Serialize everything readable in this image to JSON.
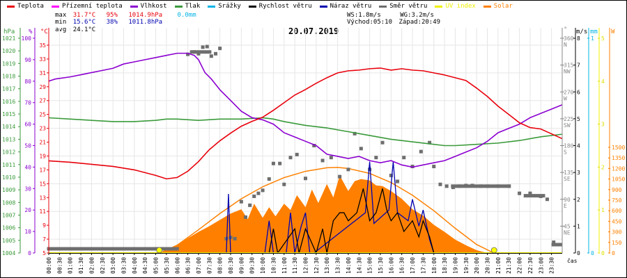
{
  "legend": [
    {
      "label": "Teplota",
      "color": "#e8000b"
    },
    {
      "label": "Přízemní teplota",
      "color": "#ff00ff"
    },
    {
      "label": "Vlhkost",
      "color": "#8b00d0"
    },
    {
      "label": "Tlak",
      "color": "#3a9a3a"
    },
    {
      "label": "Srážky",
      "color": "#00b4e6"
    },
    {
      "label": "Rychlost větru",
      "color": "#000000"
    },
    {
      "label": "Náraz větru",
      "color": "#0000b0"
    },
    {
      "label": "Směr větru",
      "color": "#6e6e6e"
    },
    {
      "label": "UV index",
      "color": "#f0f000"
    },
    {
      "label": "Solar",
      "color": "#ff8000"
    }
  ],
  "stats": {
    "max_label": "max",
    "max_temp": "31.7°C",
    "max_hum": "95%",
    "max_press": "1014.9hPa",
    "rain": "0.0mm",
    "min_label": "min",
    "min_temp": "15.6°C",
    "min_hum": "38%",
    "min_press": "1011.8hPa",
    "avg_label": "avg",
    "avg_temp": "24.1°C",
    "ws": "WS:1.8m/s",
    "wg": "WG:3.2m/s",
    "sunrise": "Východ:05:10",
    "sunset": "Západ:20:49"
  },
  "chart_data": {
    "type": "line",
    "title": "20.07.2019",
    "xlabel": "čas",
    "x_ticks": [
      "00:00",
      "00:30",
      "01:00",
      "01:30",
      "02:00",
      "02:30",
      "03:00",
      "03:30",
      "04:00",
      "04:30",
      "05:00",
      "05:30",
      "06:00",
      "06:30",
      "07:00",
      "07:30",
      "08:00",
      "08:30",
      "09:00",
      "09:30",
      "10:00",
      "10:30",
      "11:00",
      "11:30",
      "12:00",
      "12:30",
      "13:00",
      "13:30",
      "14:00",
      "14:30",
      "15:00",
      "15:30",
      "16:00",
      "16:30",
      "17:00",
      "17:30",
      "18:00",
      "18:30",
      "19:00",
      "19:30",
      "20:00",
      "20:30",
      "21:00",
      "21:30",
      "22:00",
      "22:30",
      "23:00",
      "23:30"
    ],
    "axes": {
      "pressure": {
        "unit": "hPa",
        "range": [
          1004,
          1021
        ],
        "ticks": [
          "1021",
          "1020",
          "1019",
          "1018",
          "1017",
          "1016",
          "1015",
          "1014",
          "1013",
          "1012",
          "1011",
          "1010",
          "1009",
          "1008",
          "1007",
          "1006",
          "1005",
          "1004"
        ]
      },
      "humidity": {
        "unit": "%",
        "range": [
          0,
          100
        ],
        "ticks": [
          "100",
          "90",
          "80",
          "70",
          "60",
          "50",
          "40",
          "30",
          "20",
          "10",
          "0"
        ]
      },
      "temperature": {
        "unit": "°C",
        "range": [
          5,
          36
        ],
        "ticks": [
          "35",
          "33",
          "31",
          "29",
          "27",
          "25",
          "23",
          "21",
          "19",
          "17",
          "15",
          "13",
          "11",
          "9",
          "7",
          "5"
        ]
      },
      "wind_dir": {
        "unit": "°",
        "range": [
          0,
          360
        ],
        "ticks": [
          {
            "v": "360",
            "d": "N"
          },
          {
            "v": "315",
            "d": "NW"
          },
          {
            "v": "270",
            "d": "W"
          },
          {
            "v": "225",
            "d": "SW"
          },
          {
            "v": "180",
            "d": "S"
          },
          {
            "v": "135",
            "d": "SE"
          },
          {
            "v": "90",
            "d": "E"
          },
          {
            "v": "45",
            "d": "NE"
          }
        ]
      },
      "wind_speed": {
        "unit": "m/s",
        "range": [
          0,
          8
        ],
        "ticks": [
          "8",
          "7",
          "6",
          "5",
          "4",
          "3",
          "2",
          "1",
          "0"
        ]
      },
      "rain": {
        "unit": "mm",
        "range": [
          0,
          1
        ],
        "ticks": [
          "1",
          "0"
        ]
      },
      "uv": {
        "unit": "",
        "range": [
          0,
          5
        ],
        "ticks": [
          "5",
          "4",
          "3",
          "2",
          "1",
          "0"
        ]
      },
      "solar": {
        "unit": "W",
        "range": [
          0,
          1500
        ],
        "ticks": [
          "1500",
          "1350",
          "1200",
          "1050",
          "900",
          "750",
          "600",
          "450",
          "300",
          "150",
          "0"
        ]
      }
    },
    "series": [
      {
        "name": "Teplota",
        "axis": "temperature",
        "hours": [
          0,
          1,
          2,
          3,
          4,
          5,
          5.5,
          6,
          6.5,
          7,
          7.5,
          8,
          8.5,
          9,
          9.5,
          10,
          10.5,
          11,
          11.5,
          12,
          12.5,
          13,
          13.5,
          14,
          14.5,
          15,
          15.5,
          16,
          16.5,
          17,
          17.5,
          18,
          18.5,
          19,
          19.5,
          20,
          20.5,
          21,
          21.5,
          22,
          22.5,
          23,
          23.5,
          24
        ],
        "values": [
          18.3,
          18.1,
          17.8,
          17.5,
          17.0,
          16.2,
          15.7,
          15.9,
          16.8,
          18.2,
          19.9,
          21.2,
          22.3,
          23.3,
          24.0,
          24.6,
          25.6,
          26.7,
          27.8,
          28.6,
          29.5,
          30.3,
          31.0,
          31.3,
          31.4,
          31.6,
          31.7,
          31.4,
          31.6,
          31.4,
          31.3,
          31.0,
          30.7,
          30.3,
          29.9,
          28.8,
          27.6,
          26.2,
          25.0,
          23.8,
          23.1,
          22.9,
          22.2,
          21.5
        ]
      },
      {
        "name": "Vlhkost",
        "axis": "humidity",
        "hours": [
          0,
          0.3,
          1,
          1.5,
          2,
          2.5,
          3,
          3.5,
          4,
          4.5,
          5,
          5.5,
          6,
          6.5,
          6.8,
          7,
          7.3,
          7.6,
          8,
          8.5,
          9,
          9.5,
          10,
          10.5,
          11,
          11.5,
          12,
          12.5,
          13,
          13.5,
          14,
          14.5,
          15,
          15.5,
          16,
          16.5,
          17,
          17.5,
          18,
          18.5,
          19,
          19.5,
          20,
          20.5,
          21,
          21.5,
          22,
          22.5,
          23,
          23.5,
          24
        ],
        "values": [
          80,
          81,
          82,
          83,
          84,
          85,
          86,
          88,
          89,
          90,
          91,
          92,
          93,
          93,
          92,
          90,
          84,
          81,
          76,
          71,
          66,
          63,
          62,
          60,
          56,
          54,
          52,
          50,
          46,
          45,
          44,
          45,
          43,
          42,
          43,
          41,
          40,
          41,
          42,
          43,
          45,
          47,
          49,
          52,
          56,
          58,
          60,
          63,
          65,
          67,
          69
        ]
      },
      {
        "name": "Tlak",
        "axis": "pressure",
        "hours": [
          0,
          1,
          2,
          3,
          4,
          5,
          5.5,
          6,
          7,
          8,
          9,
          10,
          10.5,
          11,
          12,
          13,
          14,
          15,
          16,
          17,
          18,
          18.5,
          19,
          20,
          21,
          22,
          23,
          24
        ],
        "values": [
          1014.7,
          1014.6,
          1014.5,
          1014.4,
          1014.4,
          1014.5,
          1014.6,
          1014.6,
          1014.5,
          1014.6,
          1014.6,
          1014.7,
          1014.6,
          1014.4,
          1014.1,
          1013.9,
          1013.6,
          1013.3,
          1013.0,
          1012.8,
          1012.6,
          1012.5,
          1012.5,
          1012.6,
          1012.7,
          1012.9,
          1013.2,
          1013.4
        ]
      },
      {
        "name": "Solar radiation (theoretical)",
        "axis": "solar",
        "hours": [
          5.2,
          6,
          7,
          8,
          9,
          10,
          11,
          12,
          13,
          13.5,
          14,
          15,
          16,
          17,
          18,
          19,
          20,
          20.8
        ],
        "values": [
          0,
          110,
          330,
          560,
          770,
          940,
          1070,
          1160,
          1210,
          1215,
          1200,
          1130,
          1000,
          820,
          600,
          350,
          120,
          0
        ]
      },
      {
        "name": "Solar",
        "axis": "solar",
        "hours": [
          5.2,
          5.5,
          6,
          6.5,
          7,
          7.5,
          8,
          8.5,
          9,
          9.3,
          9.6,
          10,
          10.3,
          10.6,
          11,
          11.3,
          11.6,
          12,
          12.3,
          12.6,
          13,
          13.3,
          13.6,
          14,
          14.3,
          14.6,
          15,
          15.3,
          15.6,
          16,
          16.5,
          17,
          17.5,
          18,
          18.5,
          19,
          19.5,
          20,
          20.5
        ],
        "values": [
          0,
          40,
          110,
          210,
          300,
          380,
          470,
          560,
          620,
          480,
          700,
          500,
          650,
          520,
          700,
          610,
          820,
          650,
          900,
          710,
          980,
          790,
          1100,
          880,
          1020,
          1050,
          1030,
          960,
          950,
          880,
          770,
          620,
          530,
          400,
          300,
          190,
          110,
          40,
          0
        ]
      },
      {
        "name": "Rychlost větru",
        "axis": "wind_speed",
        "hours": [
          0,
          10.3,
          10.5,
          10.7,
          11.5,
          11.7,
          12,
          12.5,
          12.8,
          13,
          13.3,
          13.6,
          13.8,
          14,
          14.4,
          14.7,
          15,
          15.3,
          15.6,
          15.8,
          16,
          16.3,
          16.6,
          17,
          17.3,
          17.5,
          17.8,
          18,
          24
        ],
        "values": [
          0,
          0,
          0.9,
          0,
          0.9,
          0,
          0.9,
          0,
          0.9,
          0,
          1.2,
          1.5,
          1.5,
          1.2,
          1.5,
          2.4,
          1.2,
          1.5,
          2.4,
          1.6,
          1.2,
          1.5,
          0.8,
          1.2,
          0.6,
          1.2,
          0.6,
          0,
          0
        ]
      },
      {
        "name": "Náraz větru",
        "axis": "wind_speed",
        "hours": [
          0,
          8.3,
          8.4,
          8.5,
          10.1,
          10.3,
          10.5,
          11.1,
          11.3,
          11.5,
          11.8,
          12,
          12.2,
          12.4,
          14.8,
          15.0,
          15.2,
          15.9,
          16.1,
          16.3,
          16.8,
          17.0,
          17.3,
          17.5,
          17.8,
          18,
          24
        ],
        "values": [
          0,
          0,
          2.2,
          0,
          0,
          1.2,
          0,
          0,
          1.5,
          0,
          1.0,
          1.5,
          0,
          0,
          1.5,
          3.4,
          1.1,
          1.6,
          3.4,
          1.5,
          1.2,
          2.0,
          1.0,
          1.6,
          0.5,
          0,
          0
        ]
      },
      {
        "name": "Směr větru",
        "axis": "wind_dir",
        "type": "scatter",
        "points": [
          [
            0,
            7
          ],
          [
            0.5,
            7
          ],
          [
            1,
            7
          ],
          [
            1.5,
            7
          ],
          [
            2,
            7
          ],
          [
            2.5,
            7
          ],
          [
            3,
            7
          ],
          [
            3.5,
            7
          ],
          [
            4,
            7
          ],
          [
            4.5,
            7
          ],
          [
            5,
            7
          ],
          [
            5.5,
            7
          ],
          [
            6,
            7
          ],
          [
            6.5,
            333
          ],
          [
            6.8,
            337
          ],
          [
            7,
            334
          ],
          [
            7.2,
            345
          ],
          [
            7.4,
            346
          ],
          [
            7.6,
            330
          ],
          [
            7.8,
            334
          ],
          [
            8,
            343
          ],
          [
            8.3,
            24
          ],
          [
            8.5,
            26
          ],
          [
            8.7,
            24
          ],
          [
            9,
            86
          ],
          [
            9.2,
            60
          ],
          [
            9.4,
            80
          ],
          [
            9.6,
            95
          ],
          [
            9.8,
            100
          ],
          [
            10,
            105
          ],
          [
            10.3,
            124
          ],
          [
            10.5,
            150
          ],
          [
            10.8,
            150
          ],
          [
            11,
            115
          ],
          [
            11.3,
            160
          ],
          [
            11.6,
            165
          ],
          [
            12,
            125
          ],
          [
            12.4,
            180
          ],
          [
            12.8,
            155
          ],
          [
            13.2,
            160
          ],
          [
            13.6,
            128
          ],
          [
            14,
            140
          ],
          [
            14.3,
            200
          ],
          [
            14.6,
            175
          ],
          [
            15,
            140
          ],
          [
            15.3,
            160
          ],
          [
            15.6,
            185
          ],
          [
            16,
            130
          ],
          [
            16.3,
            120
          ],
          [
            16.6,
            160
          ],
          [
            17,
            145
          ],
          [
            17.4,
            170
          ],
          [
            17.8,
            185
          ],
          [
            18,
            145
          ],
          [
            18.3,
            115
          ],
          [
            18.6,
            112
          ],
          [
            18.9,
            110
          ],
          [
            19.2,
            112
          ],
          [
            19.5,
            113
          ],
          [
            19.8,
            113
          ],
          [
            20.2,
            112
          ],
          [
            20.5,
            112
          ],
          [
            21,
            112
          ],
          [
            21.5,
            112
          ],
          [
            22,
            100
          ],
          [
            22.5,
            100
          ],
          [
            23,
            95
          ],
          [
            23.3,
            90
          ],
          [
            23.6,
            18
          ]
        ]
      },
      {
        "name": "UV index",
        "axis": "uv",
        "hours": [
          0,
          24
        ],
        "values": [
          0,
          0
        ]
      }
    ],
    "sun_markers": [
      "05:10",
      "20:49"
    ]
  }
}
